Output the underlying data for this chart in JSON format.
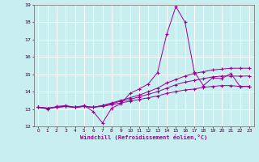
{
  "xlabel": "Windchill (Refroidissement éolien,°C)",
  "xlim": [
    -0.5,
    23.5
  ],
  "ylim": [
    12,
    19
  ],
  "yticks": [
    12,
    13,
    14,
    15,
    16,
    17,
    18,
    19
  ],
  "xticks": [
    0,
    1,
    2,
    3,
    4,
    5,
    6,
    7,
    8,
    9,
    10,
    11,
    12,
    13,
    14,
    15,
    16,
    17,
    18,
    19,
    20,
    21,
    22,
    23
  ],
  "background_color": "#c8eef0",
  "grid_color": "#ffffff",
  "line_color": "#990099",
  "lines": [
    {
      "x": [
        0,
        1,
        2,
        3,
        4,
        5,
        6,
        7,
        8,
        9,
        10,
        11,
        12,
        13,
        14,
        15,
        16,
        17,
        18,
        19,
        20,
        21,
        22,
        23
      ],
      "y": [
        13.1,
        13.0,
        13.15,
        13.2,
        13.1,
        13.2,
        12.85,
        12.2,
        13.05,
        13.3,
        13.9,
        14.15,
        14.45,
        15.1,
        17.3,
        18.9,
        18.0,
        15.15,
        14.35,
        14.8,
        14.75,
        15.05,
        14.3,
        14.3
      ]
    },
    {
      "x": [
        0,
        1,
        2,
        3,
        4,
        5,
        6,
        7,
        8,
        9,
        10,
        11,
        12,
        13,
        14,
        15,
        16,
        17,
        18,
        19,
        20,
        21,
        22,
        23
      ],
      "y": [
        13.1,
        13.05,
        13.1,
        13.15,
        13.1,
        13.15,
        13.1,
        13.2,
        13.35,
        13.5,
        13.65,
        13.8,
        14.0,
        14.2,
        14.5,
        14.7,
        14.9,
        15.05,
        15.15,
        15.25,
        15.3,
        15.35,
        15.35,
        15.35
      ]
    },
    {
      "x": [
        0,
        1,
        2,
        3,
        4,
        5,
        6,
        7,
        8,
        9,
        10,
        11,
        12,
        13,
        14,
        15,
        16,
        17,
        18,
        19,
        20,
        21,
        22,
        23
      ],
      "y": [
        13.1,
        13.05,
        13.1,
        13.15,
        13.1,
        13.15,
        13.1,
        13.2,
        13.3,
        13.45,
        13.55,
        13.7,
        13.85,
        14.0,
        14.2,
        14.4,
        14.55,
        14.65,
        14.75,
        14.85,
        14.9,
        14.9,
        14.9,
        14.9
      ]
    },
    {
      "x": [
        0,
        1,
        2,
        3,
        4,
        5,
        6,
        7,
        8,
        9,
        10,
        11,
        12,
        13,
        14,
        15,
        16,
        17,
        18,
        19,
        20,
        21,
        22,
        23
      ],
      "y": [
        13.1,
        13.05,
        13.1,
        13.15,
        13.1,
        13.15,
        13.1,
        13.15,
        13.25,
        13.35,
        13.45,
        13.55,
        13.65,
        13.75,
        13.9,
        14.0,
        14.1,
        14.15,
        14.25,
        14.3,
        14.35,
        14.35,
        14.3,
        14.3
      ]
    }
  ]
}
